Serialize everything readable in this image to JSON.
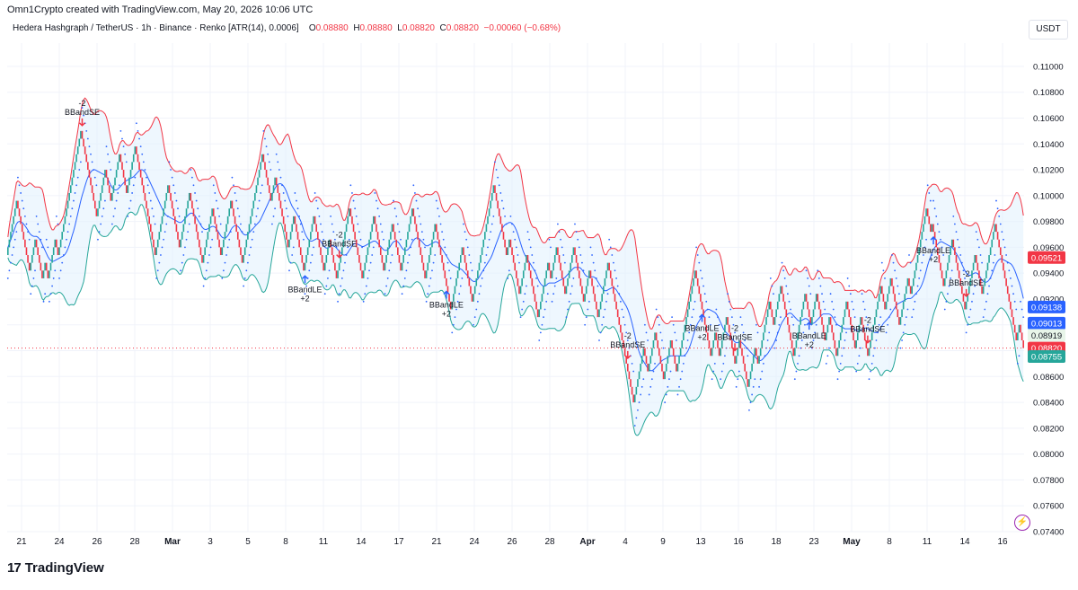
{
  "header": {
    "created_by": "Omn1Crypto created with TradingView.com, May 20, 2026 10:06 UTC",
    "symbol_line": "Hedera Hashgraph / TetherUS · 1h · Binance · Renko [ATR(14), 0.0006]",
    "ohlc": {
      "o_label": "O",
      "o": "0.08880",
      "h_label": "H",
      "h": "0.08880",
      "l_label": "L",
      "l": "0.08820",
      "c_label": "C",
      "c": "0.08820",
      "change": "−0.00060 (−0.68%)"
    },
    "currency": "USDT"
  },
  "footer": {
    "logo_glyph": "17",
    "brand": "TradingView"
  },
  "colors": {
    "up": "#26a69a",
    "down": "#f23645",
    "upper_band": "#f23645",
    "lower_band": "#26a69a",
    "basis": "#2962ff",
    "band_fill": "#e3f2fd",
    "sar": "#2962ff"
  },
  "chart_data": {
    "type": "renko",
    "title": "Hedera Hashgraph / TetherUS · 1h · Binance · Renko [ATR(14), 0.0006]",
    "box_size": 0.0006,
    "ylim": [
      0.074,
      0.1118
    ],
    "y_ticks": [
      "0.11000",
      "0.10800",
      "0.10600",
      "0.10400",
      "0.10200",
      "0.10000",
      "0.09800",
      "0.09600",
      "0.09400",
      "0.09200",
      "0.09000",
      "0.08800",
      "0.08600",
      "0.08400",
      "0.08200",
      "0.08000",
      "0.07800",
      "0.07600",
      "0.07400"
    ],
    "x_ticks": [
      "21",
      "24",
      "26",
      "28",
      "Mar",
      "3",
      "5",
      "8",
      "11",
      "14",
      "17",
      "21",
      "24",
      "26",
      "28",
      "Apr",
      "4",
      "9",
      "13",
      "16",
      "18",
      "23",
      "May",
      "8",
      "11",
      "14",
      "16"
    ],
    "price_path": [
      0.0954,
      0.0996,
      0.0942,
      0.0966,
      0.0936,
      0.0948,
      0.0936,
      0.0966,
      0.0954,
      0.105,
      0.0984,
      0.102,
      0.0996,
      0.1032,
      0.1002,
      0.1038,
      0.1002,
      0.0954,
      0.1008,
      0.096,
      0.1002,
      0.0948,
      0.099,
      0.0954,
      0.0996,
      0.0948,
      0.1032,
      0.0996,
      0.1014,
      0.096,
      0.0984,
      0.0942,
      0.0984,
      0.0942,
      0.0966,
      0.0936,
      0.099,
      0.0948,
      0.0936,
      0.0984,
      0.0942,
      0.0978,
      0.0942,
      0.099,
      0.0936,
      0.0978,
      0.0912,
      0.096,
      0.0918,
      0.1008,
      0.0954,
      0.0966,
      0.0924,
      0.0954,
      0.0906,
      0.0948,
      0.0936,
      0.096,
      0.0924,
      0.096,
      0.0918,
      0.0942,
      0.0906,
      0.0948,
      0.0876,
      0.0846,
      0.084,
      0.0882,
      0.087,
      0.0864,
      0.0894,
      0.0858,
      0.0888,
      0.0864,
      0.0918,
      0.0942,
      0.0894,
      0.0876,
      0.0894,
      0.0876,
      0.0906,
      0.087,
      0.0888,
      0.0858,
      0.0852,
      0.0882,
      0.087,
      0.0918,
      0.09,
      0.093,
      0.0882,
      0.0876,
      0.0924,
      0.09,
      0.0924,
      0.0888,
      0.0906,
      0.0876,
      0.0918,
      0.0882,
      0.0906,
      0.0876,
      0.093,
      0.0912,
      0.0936,
      0.09,
      0.0936,
      0.0924,
      0.099,
      0.0972,
      0.0978,
      0.0948,
      0.093,
      0.0966,
      0.0912,
      0.0954,
      0.0924,
      0.0978,
      0.0948,
      0.0942,
      0.0918,
      0.0888,
      0.09,
      0.0882
    ],
    "last_price": 0.0882,
    "price_labels": [
      {
        "value": 0.09521,
        "text": "0.09521",
        "color": "#f23645",
        "name": "upper-band"
      },
      {
        "value": 0.09138,
        "text": "0.09138",
        "color": "#2962ff",
        "name": "sar"
      },
      {
        "value": 0.09013,
        "text": "0.09013",
        "color": "#2962ff",
        "name": "basis"
      },
      {
        "value": 0.08919,
        "text": "0.08919",
        "color": "#e8f5e9",
        "name": "prev-close",
        "text_color": "#131722"
      },
      {
        "value": 0.0882,
        "text": "0.08820",
        "color": "#f23645",
        "name": "last-price"
      },
      {
        "value": 0.08755,
        "text": "0.08755",
        "color": "#26a69a",
        "name": "lower-band"
      }
    ],
    "signals": [
      {
        "type": "short",
        "line1": "-2",
        "line2": "BBandSE",
        "brick": 9
      },
      {
        "type": "long",
        "line1": "BBandLE",
        "line2": "+2",
        "brick": 36
      },
      {
        "type": "short",
        "line1": "-2",
        "line2": "BBandSE",
        "brick": 40
      },
      {
        "type": "long",
        "line1": "BBandLE",
        "line2": "+2",
        "brick": 53
      },
      {
        "type": "short",
        "line1": "-2",
        "line2": "BBandSE",
        "brick": 75
      },
      {
        "type": "long",
        "line1": "BBandLE",
        "line2": "+2",
        "brick": 84
      },
      {
        "type": "short",
        "line1": "-2",
        "line2": "BBandSE",
        "brick": 88
      },
      {
        "type": "long",
        "line1": "BBandLE",
        "line2": "+2",
        "brick": 97
      },
      {
        "type": "short",
        "line1": "-2",
        "line2": "BBandSE",
        "brick": 104
      },
      {
        "type": "long",
        "line1": "BBandLE",
        "line2": "+2",
        "brick": 112
      },
      {
        "type": "short",
        "line1": "-2",
        "line2": "BBandSE",
        "brick": 116
      }
    ]
  }
}
